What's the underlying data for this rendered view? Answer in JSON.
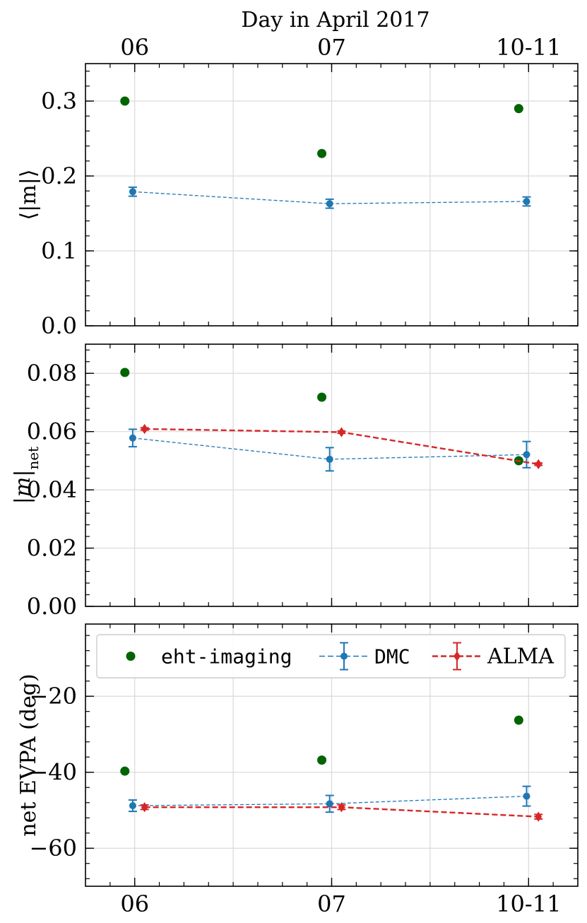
{
  "chart_data": {
    "type": "scatter",
    "top_axis": {
      "label": "Day in April 2017"
    },
    "categories": [
      "06",
      "07",
      "10-11"
    ],
    "series_styles": {
      "eht-imaging": {
        "color": "#006400",
        "marker": "circle",
        "errorbars": false,
        "line": "none"
      },
      "DMC": {
        "color": "#1f77b4",
        "marker": "circle",
        "errorbars": true,
        "line": "dashed-thin"
      },
      "ALMA": {
        "color": "#d62728",
        "marker": "diamond",
        "errorbars": true,
        "line": "dashed"
      }
    },
    "panels": [
      {
        "ylabel": "⟨|m|⟩",
        "ylim": [
          0,
          0.35
        ],
        "yticks": [
          0.0,
          0.1,
          0.2,
          0.3
        ],
        "yticklabels": [
          "0.0",
          "0.1",
          "0.2",
          "0.3"
        ],
        "series": [
          {
            "name": "eht-imaging",
            "values": [
              0.3,
              0.23,
              0.29
            ],
            "err": [
              0,
              0,
              0
            ],
            "offset": -0.05
          },
          {
            "name": "DMC",
            "values": [
              0.179,
              0.163,
              0.166
            ],
            "err": [
              0.006,
              0.006,
              0.006
            ],
            "offset": -0.01
          }
        ]
      },
      {
        "ylabel": "|m|net",
        "ylim": [
          0,
          0.09
        ],
        "yticks": [
          0.0,
          0.02,
          0.04,
          0.06,
          0.08
        ],
        "yticklabels": [
          "0.00",
          "0.02",
          "0.04",
          "0.06",
          "0.08"
        ],
        "series": [
          {
            "name": "eht-imaging",
            "values": [
              0.0803,
              0.0718,
              0.05
            ],
            "err": [
              0,
              0,
              0
            ],
            "offset": -0.05
          },
          {
            "name": "DMC",
            "values": [
              0.0578,
              0.0505,
              0.0521
            ],
            "err": [
              0.003,
              0.004,
              0.0045
            ],
            "offset": -0.01
          },
          {
            "name": "ALMA",
            "values": [
              0.0609,
              0.0598,
              0.0488
            ],
            "err": [
              0.0004,
              0.0004,
              0.0004
            ],
            "offset": 0.05
          }
        ]
      },
      {
        "ylabel": "net EVPA (deg)",
        "ylim": [
          -70,
          -1
        ],
        "yticks": [
          -60,
          -40,
          -20
        ],
        "yticklabels": [
          "−60",
          "−40",
          "−20"
        ],
        "legend": {
          "location": "top",
          "entries": [
            "eht-imaging",
            "DMC",
            "ALMA"
          ]
        },
        "series": [
          {
            "name": "eht-imaging",
            "values": [
              -39.7,
              -36.8,
              -26.3
            ],
            "err": [
              0,
              0,
              0
            ],
            "offset": -0.05
          },
          {
            "name": "DMC",
            "values": [
              -48.8,
              -48.3,
              -46.3
            ],
            "err": [
              1.5,
              2.2,
              2.6
            ],
            "offset": -0.01
          },
          {
            "name": "ALMA",
            "values": [
              -49.2,
              -49.2,
              -51.7
            ],
            "err": [
              0.6,
              0.6,
              0.6
            ],
            "offset": 0.05
          }
        ]
      }
    ]
  }
}
